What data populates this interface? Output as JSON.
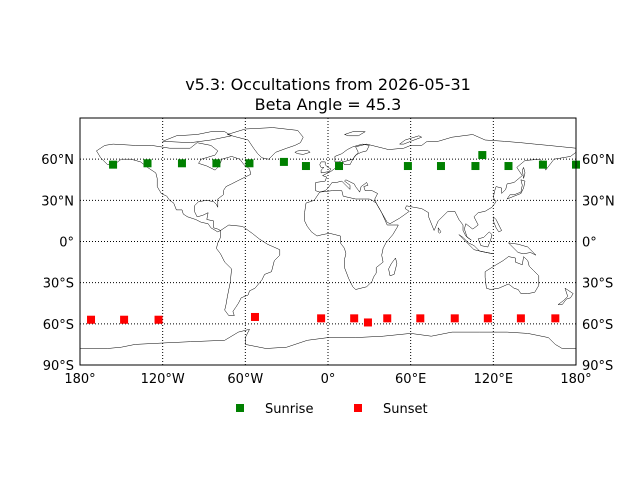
{
  "chart_data": {
    "type": "scatter",
    "title": "v5.3: Occultations from 2026-05-31",
    "subtitle": "Beta Angle = 45.3",
    "xlabel": "",
    "ylabel": "",
    "xlim": [
      -180,
      180
    ],
    "ylim": [
      -90,
      90
    ],
    "grid": true,
    "grid_style": "dotted",
    "projection": "equirectangular world map with coastlines",
    "x_ticks": [
      {
        "value": -180,
        "label": "180°"
      },
      {
        "value": -120,
        "label": "120°W"
      },
      {
        "value": -60,
        "label": "60°W"
      },
      {
        "value": 0,
        "label": "0°"
      },
      {
        "value": 60,
        "label": "60°E"
      },
      {
        "value": 120,
        "label": "120°E"
      },
      {
        "value": 180,
        "label": "180°"
      }
    ],
    "y_ticks": [
      {
        "value": 60,
        "label": "60°N"
      },
      {
        "value": 30,
        "label": "30°N"
      },
      {
        "value": 0,
        "label": "0°"
      },
      {
        "value": -30,
        "label": "30°S"
      },
      {
        "value": -60,
        "label": "60°S"
      },
      {
        "value": -90,
        "label": "90°S"
      }
    ],
    "legend_position": "bottom-center",
    "series": [
      {
        "name": "Sunrise",
        "color": "#008000",
        "marker": "square",
        "points": [
          {
            "x": -156,
            "y": 56
          },
          {
            "x": -131,
            "y": 57
          },
          {
            "x": -106,
            "y": 57
          },
          {
            "x": -81,
            "y": 57
          },
          {
            "x": -57,
            "y": 57
          },
          {
            "x": -32,
            "y": 58
          },
          {
            "x": -16,
            "y": 55
          },
          {
            "x": 8,
            "y": 55
          },
          {
            "x": 58,
            "y": 55
          },
          {
            "x": 82,
            "y": 55
          },
          {
            "x": 107,
            "y": 55
          },
          {
            "x": 112,
            "y": 63
          },
          {
            "x": 131,
            "y": 55
          },
          {
            "x": 156,
            "y": 56
          },
          {
            "x": 180,
            "y": 56
          }
        ]
      },
      {
        "name": "Sunset",
        "color": "#ff0000",
        "marker": "square",
        "points": [
          {
            "x": -172,
            "y": -57
          },
          {
            "x": -148,
            "y": -57
          },
          {
            "x": -123,
            "y": -57
          },
          {
            "x": -53,
            "y": -55
          },
          {
            "x": -5,
            "y": -56
          },
          {
            "x": 19,
            "y": -56
          },
          {
            "x": 29,
            "y": -59
          },
          {
            "x": 43,
            "y": -56
          },
          {
            "x": 67,
            "y": -56
          },
          {
            "x": 92,
            "y": -56
          },
          {
            "x": 116,
            "y": -56
          },
          {
            "x": 140,
            "y": -56
          },
          {
            "x": 165,
            "y": -56
          }
        ]
      }
    ]
  }
}
